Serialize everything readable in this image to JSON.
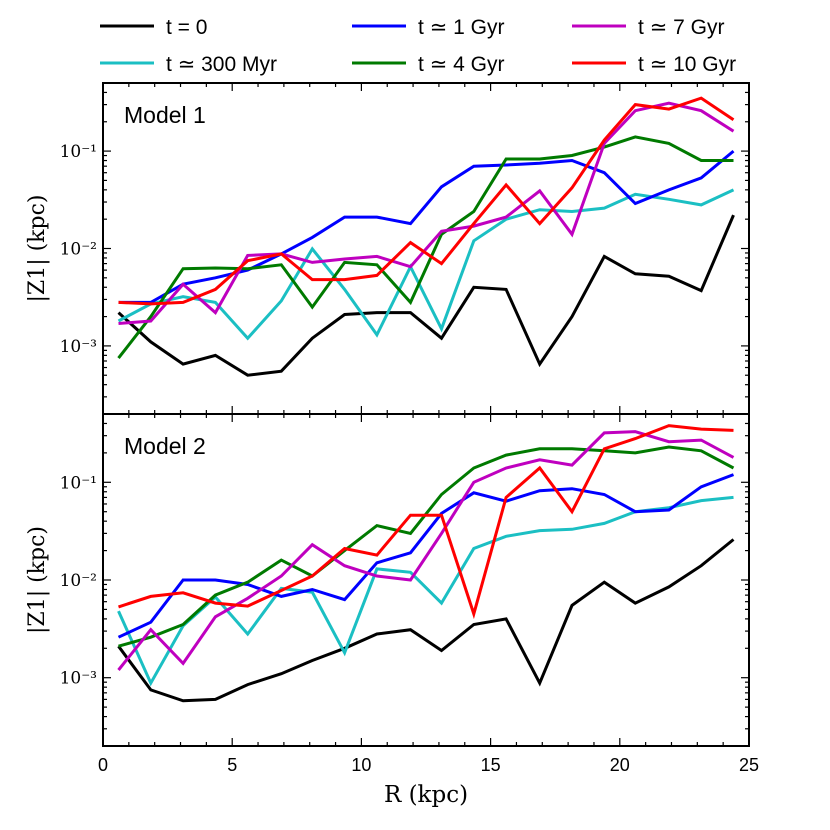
{
  "legend": {
    "entries": [
      {
        "label": "t = 0",
        "color": "#000000"
      },
      {
        "label": "t ≃ 300 Myr",
        "color": "#1bbfc3"
      },
      {
        "label": "t ≃ 1 Gyr",
        "color": "#0000ff"
      },
      {
        "label": "t ≃ 4 Gyr",
        "color": "#007a00"
      },
      {
        "label": "t ≃ 7 Gyr",
        "color": "#bf00bf"
      },
      {
        "label": "t ≃ 10 Gyr",
        "color": "#ff0000"
      }
    ]
  },
  "chart_data": [
    {
      "type": "line",
      "title": "Model 1",
      "xlabel": "R (kpc)",
      "ylabel": "|Z1| (kpc)",
      "xlim": [
        0,
        25
      ],
      "ylim": [
        0.0002,
        0.5
      ],
      "yscale": "log",
      "xticks": [
        0,
        5,
        10,
        15,
        20,
        25
      ],
      "yticks": [
        0.001,
        0.01,
        0.1
      ],
      "ytick_labels": [
        "10⁻³",
        "10⁻²",
        "10⁻¹"
      ],
      "x": [
        0.6,
        1.85,
        3.1,
        4.35,
        5.6,
        6.9,
        8.1,
        9.35,
        10.6,
        11.9,
        13.1,
        14.35,
        15.6,
        16.9,
        18.15,
        19.4,
        20.6,
        21.9,
        23.15,
        24.4
      ],
      "series": [
        {
          "name": "t = 0",
          "color": "#000000",
          "values": [
            0.0022,
            0.0011,
            0.00065,
            0.0008,
            0.0005,
            0.00055,
            0.0012,
            0.0021,
            0.0022,
            0.0022,
            0.0012,
            0.004,
            0.0038,
            0.00065,
            0.002,
            0.0083,
            0.0055,
            0.0052,
            0.0037,
            0.022
          ]
        },
        {
          "name": "t ≃ 300 Myr",
          "color": "#1bbfc3",
          "values": [
            0.0018,
            0.0027,
            0.0032,
            0.0028,
            0.0012,
            0.0029,
            0.0099,
            0.0038,
            0.0013,
            0.0065,
            0.0015,
            0.012,
            0.02,
            0.025,
            0.024,
            0.026,
            0.036,
            0.032,
            0.028,
            0.04
          ]
        },
        {
          "name": "t ≃ 1 Gyr",
          "color": "#0000ff",
          "values": [
            0.0028,
            0.0028,
            0.0043,
            0.005,
            0.006,
            0.0088,
            0.013,
            0.021,
            0.021,
            0.018,
            0.043,
            0.07,
            0.072,
            0.075,
            0.08,
            0.06,
            0.029,
            0.04,
            0.053,
            0.1
          ]
        },
        {
          "name": "t ≃ 4 Gyr",
          "color": "#007a00",
          "values": [
            0.00075,
            0.002,
            0.0062,
            0.0063,
            0.0062,
            0.0068,
            0.0025,
            0.0072,
            0.0068,
            0.0028,
            0.014,
            0.024,
            0.083,
            0.083,
            0.09,
            0.11,
            0.14,
            0.12,
            0.08,
            0.08
          ]
        },
        {
          "name": "t ≃ 7 Gyr",
          "color": "#bf00bf",
          "values": [
            0.0017,
            0.0018,
            0.0043,
            0.0022,
            0.0085,
            0.0088,
            0.0072,
            0.0078,
            0.0083,
            0.0065,
            0.015,
            0.017,
            0.021,
            0.039,
            0.014,
            0.12,
            0.26,
            0.31,
            0.26,
            0.16
          ]
        },
        {
          "name": "t ≃ 10 Gyr",
          "color": "#ff0000",
          "values": [
            0.0028,
            0.0027,
            0.0028,
            0.0038,
            0.0075,
            0.0088,
            0.0048,
            0.0048,
            0.0053,
            0.0115,
            0.007,
            0.018,
            0.045,
            0.018,
            0.042,
            0.13,
            0.3,
            0.27,
            0.35,
            0.21
          ]
        }
      ]
    },
    {
      "type": "line",
      "title": "Model 2",
      "xlabel": "R (kpc)",
      "ylabel": "|Z1| (kpc)",
      "xlim": [
        0,
        25
      ],
      "ylim": [
        0.0002,
        0.5
      ],
      "yscale": "log",
      "xticks": [
        0,
        5,
        10,
        15,
        20,
        25
      ],
      "yticks": [
        0.001,
        0.01,
        0.1
      ],
      "ytick_labels": [
        "10⁻³",
        "10⁻²",
        "10⁻¹"
      ],
      "x": [
        0.6,
        1.85,
        3.1,
        4.35,
        5.6,
        6.9,
        8.1,
        9.35,
        10.6,
        11.9,
        13.1,
        14.35,
        15.6,
        16.9,
        18.15,
        19.4,
        20.6,
        21.9,
        23.15,
        24.4
      ],
      "series": [
        {
          "name": "t = 0",
          "color": "#000000",
          "values": [
            0.0021,
            0.00075,
            0.00058,
            0.0006,
            0.00085,
            0.0011,
            0.0015,
            0.002,
            0.0028,
            0.0031,
            0.0019,
            0.0035,
            0.004,
            0.00088,
            0.0055,
            0.0095,
            0.0058,
            0.0085,
            0.014,
            0.026
          ]
        },
        {
          "name": "t ≃ 300 Myr",
          "color": "#1bbfc3",
          "values": [
            0.0048,
            0.00088,
            0.0034,
            0.0067,
            0.0028,
            0.0082,
            0.0075,
            0.0018,
            0.013,
            0.012,
            0.0058,
            0.021,
            0.028,
            0.032,
            0.033,
            0.038,
            0.05,
            0.055,
            0.065,
            0.07
          ]
        },
        {
          "name": "t ≃ 1 Gyr",
          "color": "#0000ff",
          "values": [
            0.0026,
            0.0037,
            0.01,
            0.01,
            0.009,
            0.0068,
            0.008,
            0.0063,
            0.015,
            0.019,
            0.048,
            0.078,
            0.064,
            0.082,
            0.086,
            0.075,
            0.05,
            0.052,
            0.09,
            0.12
          ]
        },
        {
          "name": "t ≃ 4 Gyr",
          "color": "#007a00",
          "values": [
            0.0021,
            0.0026,
            0.0035,
            0.007,
            0.0095,
            0.016,
            0.011,
            0.02,
            0.036,
            0.03,
            0.075,
            0.14,
            0.19,
            0.22,
            0.22,
            0.21,
            0.2,
            0.23,
            0.21,
            0.14
          ]
        },
        {
          "name": "t ≃ 7 Gyr",
          "color": "#bf00bf",
          "values": [
            0.0012,
            0.0031,
            0.0014,
            0.0042,
            0.0065,
            0.011,
            0.023,
            0.014,
            0.011,
            0.01,
            0.03,
            0.1,
            0.14,
            0.17,
            0.15,
            0.32,
            0.33,
            0.26,
            0.27,
            0.18
          ]
        },
        {
          "name": "t ≃ 10 Gyr",
          "color": "#ff0000",
          "values": [
            0.0053,
            0.0068,
            0.0074,
            0.0058,
            0.0054,
            0.0078,
            0.011,
            0.021,
            0.018,
            0.046,
            0.046,
            0.0045,
            0.07,
            0.14,
            0.05,
            0.22,
            0.28,
            0.38,
            0.35,
            0.34
          ]
        }
      ]
    }
  ]
}
